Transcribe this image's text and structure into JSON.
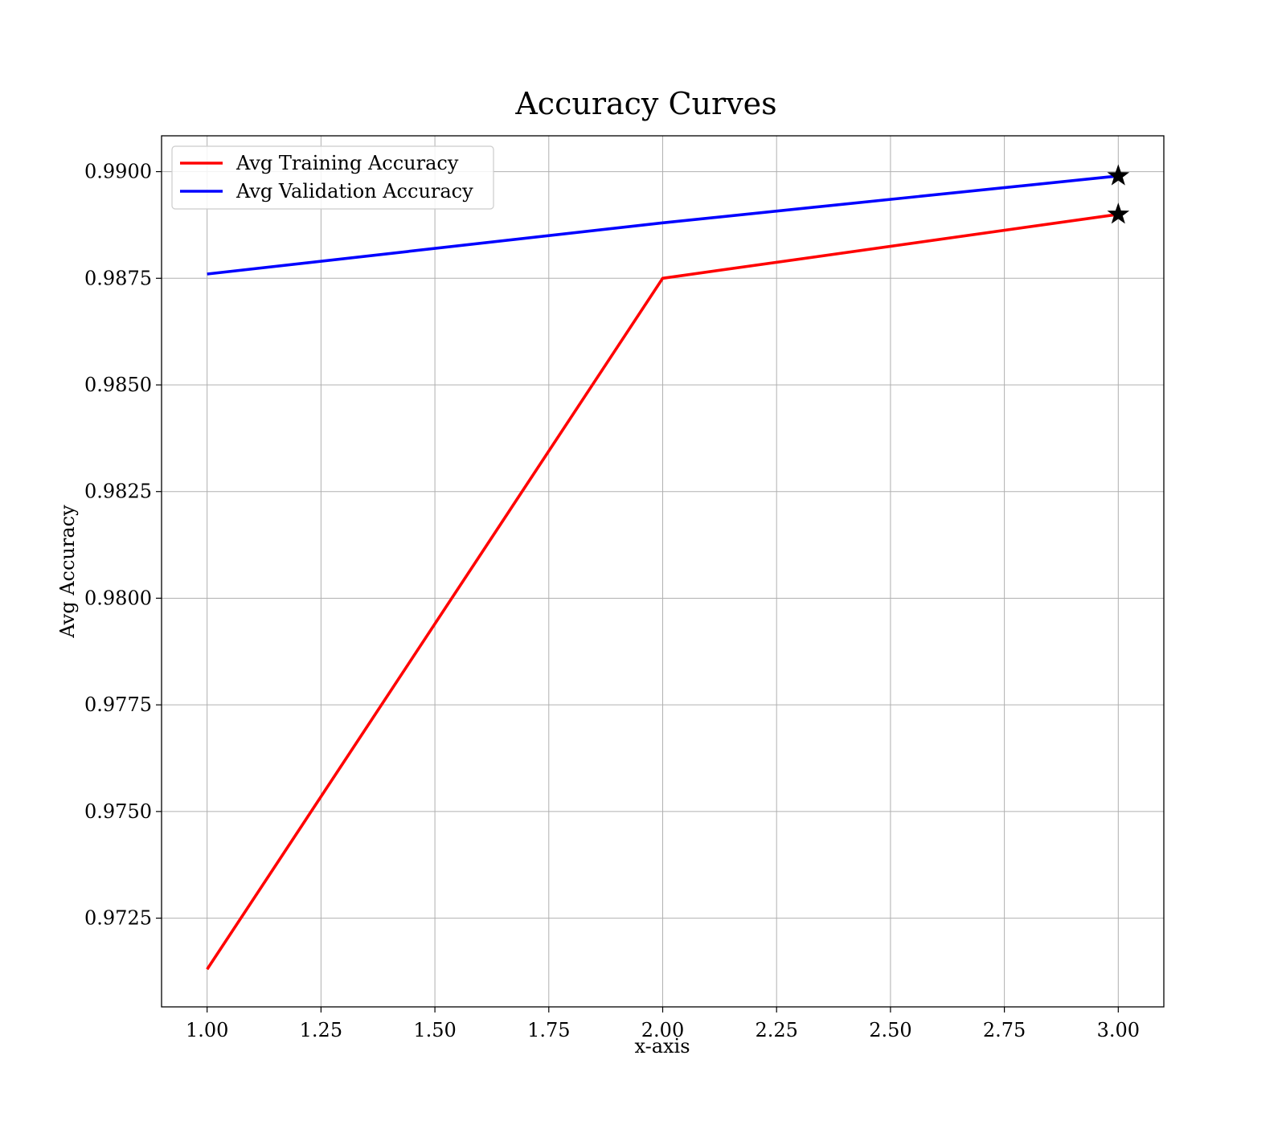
{
  "chart_data": {
    "type": "line",
    "title": "Accuracy Curves",
    "xlabel": "x-axis",
    "ylabel": "Avg Accuracy",
    "xlim": [
      0.9,
      3.1
    ],
    "ylim": [
      0.97042,
      0.99084
    ],
    "x_ticks": [
      1.0,
      1.25,
      1.5,
      1.75,
      2.0,
      2.25,
      2.5,
      2.75,
      3.0
    ],
    "x_tick_labels": [
      "1.00",
      "1.25",
      "1.50",
      "1.75",
      "2.00",
      "2.25",
      "2.50",
      "2.75",
      "3.00"
    ],
    "y_ticks": [
      0.9725,
      0.975,
      0.9775,
      0.98,
      0.9825,
      0.985,
      0.9875,
      0.99
    ],
    "y_tick_labels": [
      "0.9725",
      "0.9750",
      "0.9775",
      "0.9800",
      "0.9825",
      "0.9850",
      "0.9875",
      "0.9900"
    ],
    "grid": true,
    "legend_position": "top-left",
    "series": [
      {
        "name": "Avg Training Accuracy",
        "color": "#ff0000",
        "x": [
          1.0,
          2.0,
          3.0
        ],
        "y": [
          0.9713,
          0.9875,
          0.989
        ],
        "best_marker": {
          "shape": "star",
          "x": 3.0,
          "y": 0.989
        }
      },
      {
        "name": "Avg Validation Accuracy",
        "color": "#0000ff",
        "x": [
          1.0,
          2.0,
          3.0
        ],
        "y": [
          0.9876,
          0.9888,
          0.9899
        ],
        "best_marker": {
          "shape": "star",
          "x": 3.0,
          "y": 0.9899
        }
      }
    ]
  }
}
